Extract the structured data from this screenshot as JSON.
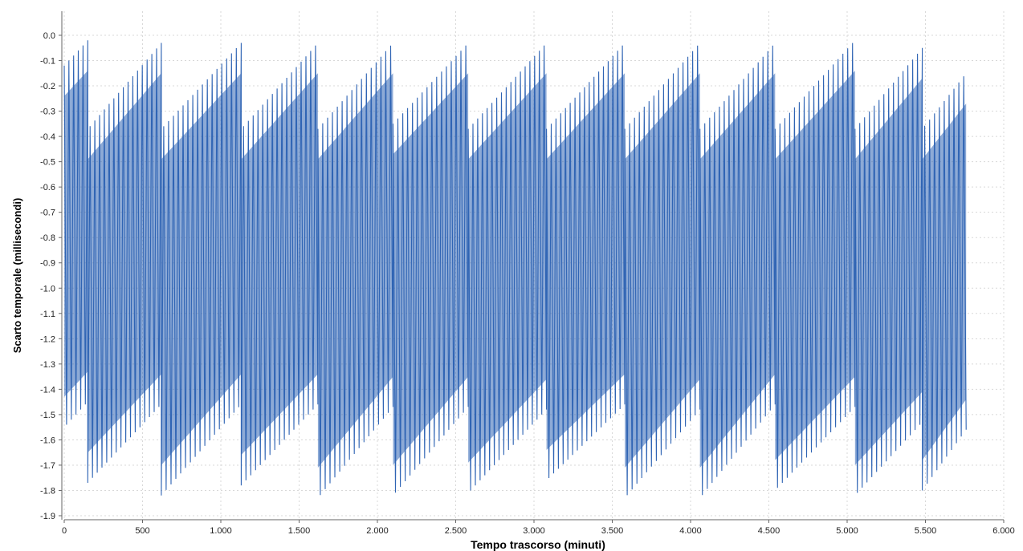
{
  "chart_data": {
    "type": "line",
    "title": "",
    "xlabel": "Tempo trascorso (minuti)",
    "ylabel": "Scarto temporale (millisecondi)",
    "xlim": [
      0,
      6000
    ],
    "ylim": [
      -1.9,
      0.0
    ],
    "x_ticks": [
      0,
      500,
      1000,
      1500,
      2000,
      2500,
      3000,
      3500,
      4000,
      4500,
      5000,
      5500,
      6000
    ],
    "x_tick_labels": [
      "0",
      "500",
      "1.000",
      "1.500",
      "2.000",
      "2.500",
      "3.000",
      "3.500",
      "4.000",
      "4.500",
      "5.000",
      "5.500",
      "6.000"
    ],
    "y_ticks": [
      0.0,
      -0.1,
      -0.2,
      -0.3,
      -0.4,
      -0.5,
      -0.6,
      -0.7,
      -0.8,
      -0.9,
      -1.0,
      -1.1,
      -1.2,
      -1.3,
      -1.4,
      -1.5,
      -1.6,
      -1.7,
      -1.8,
      -1.9
    ],
    "y_tick_labels": [
      "0.0",
      "-0.1",
      "-0.2",
      "-0.3",
      "-0.4",
      "-0.5",
      "-0.6",
      "-0.7",
      "-0.8",
      "-0.9",
      "-1.0",
      "-1.1",
      "-1.2",
      "-1.3",
      "-1.4",
      "-1.5",
      "-1.6",
      "-1.7",
      "-1.8",
      "-1.9"
    ],
    "grid": true,
    "series_color": "#2f64b4",
    "series": [
      {
        "name": "",
        "description_of_pattern": "dense oscillation; upper envelope sawtooth rising, lower envelope sawtooth rising",
        "cycles": [
          {
            "x_start": 0,
            "x_end": 150,
            "top_start": -0.12,
            "top_end": -0.02,
            "bot_start": -1.55,
            "bot_end": -1.45
          },
          {
            "x_start": 150,
            "x_end": 620,
            "top_start": -0.37,
            "top_end": -0.03,
            "bot_start": -1.77,
            "bot_end": -1.46
          },
          {
            "x_start": 620,
            "x_end": 1130,
            "top_start": -0.37,
            "top_end": -0.03,
            "bot_start": -1.82,
            "bot_end": -1.46
          },
          {
            "x_start": 1130,
            "x_end": 1620,
            "top_start": -0.37,
            "top_end": -0.03,
            "bot_start": -1.78,
            "bot_end": -1.46
          },
          {
            "x_start": 1620,
            "x_end": 2100,
            "top_start": -0.37,
            "top_end": -0.03,
            "bot_start": -1.83,
            "bot_end": -1.47
          },
          {
            "x_start": 2100,
            "x_end": 2580,
            "top_start": -0.35,
            "top_end": -0.03,
            "bot_start": -1.82,
            "bot_end": -1.47
          },
          {
            "x_start": 2580,
            "x_end": 3080,
            "top_start": -0.37,
            "top_end": -0.03,
            "bot_start": -1.81,
            "bot_end": -1.48
          },
          {
            "x_start": 3080,
            "x_end": 3580,
            "top_start": -0.37,
            "top_end": -0.03,
            "bot_start": -1.76,
            "bot_end": -1.46
          },
          {
            "x_start": 3580,
            "x_end": 4060,
            "top_start": -0.37,
            "top_end": -0.03,
            "bot_start": -1.83,
            "bot_end": -1.48
          },
          {
            "x_start": 4060,
            "x_end": 4540,
            "top_start": -0.37,
            "top_end": -0.03,
            "bot_start": -1.83,
            "bot_end": -1.46
          },
          {
            "x_start": 4540,
            "x_end": 5050,
            "top_start": -0.37,
            "top_end": -0.02,
            "bot_start": -1.8,
            "bot_end": -1.47
          },
          {
            "x_start": 5050,
            "x_end": 5480,
            "top_start": -0.37,
            "top_end": -0.05,
            "bot_start": -1.82,
            "bot_end": -1.53
          },
          {
            "x_start": 5480,
            "x_end": 5760,
            "top_start": -0.37,
            "top_end": -0.15,
            "bot_start": -1.8,
            "bot_end": -1.56
          }
        ]
      }
    ]
  }
}
